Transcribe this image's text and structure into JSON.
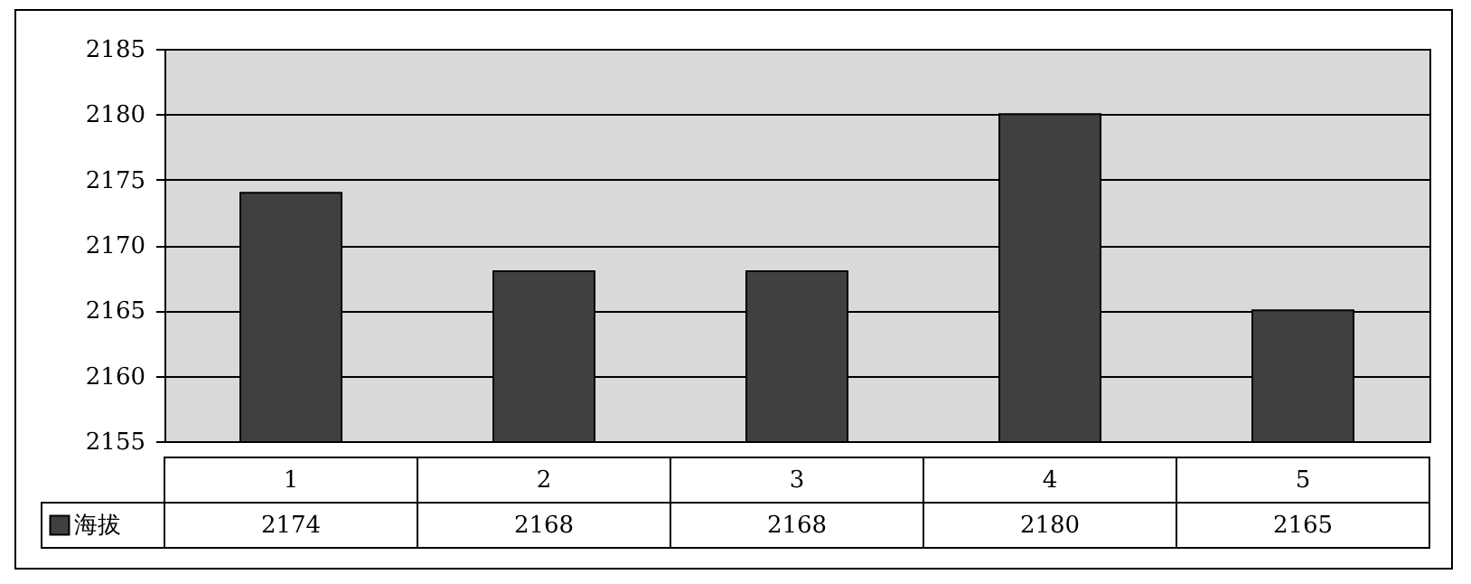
{
  "chart_data": {
    "type": "bar",
    "categories": [
      "1",
      "2",
      "3",
      "4",
      "5"
    ],
    "series": [
      {
        "name": "海拔",
        "color": "#404040",
        "values": [
          2174,
          2168,
          2168,
          2180,
          2165
        ]
      }
    ],
    "ylim": [
      2155,
      2185
    ],
    "yticks": [
      2155,
      2160,
      2165,
      2170,
      2175,
      2180,
      2185
    ],
    "grid": "y",
    "data_labels": true,
    "legend": "bottom left"
  }
}
